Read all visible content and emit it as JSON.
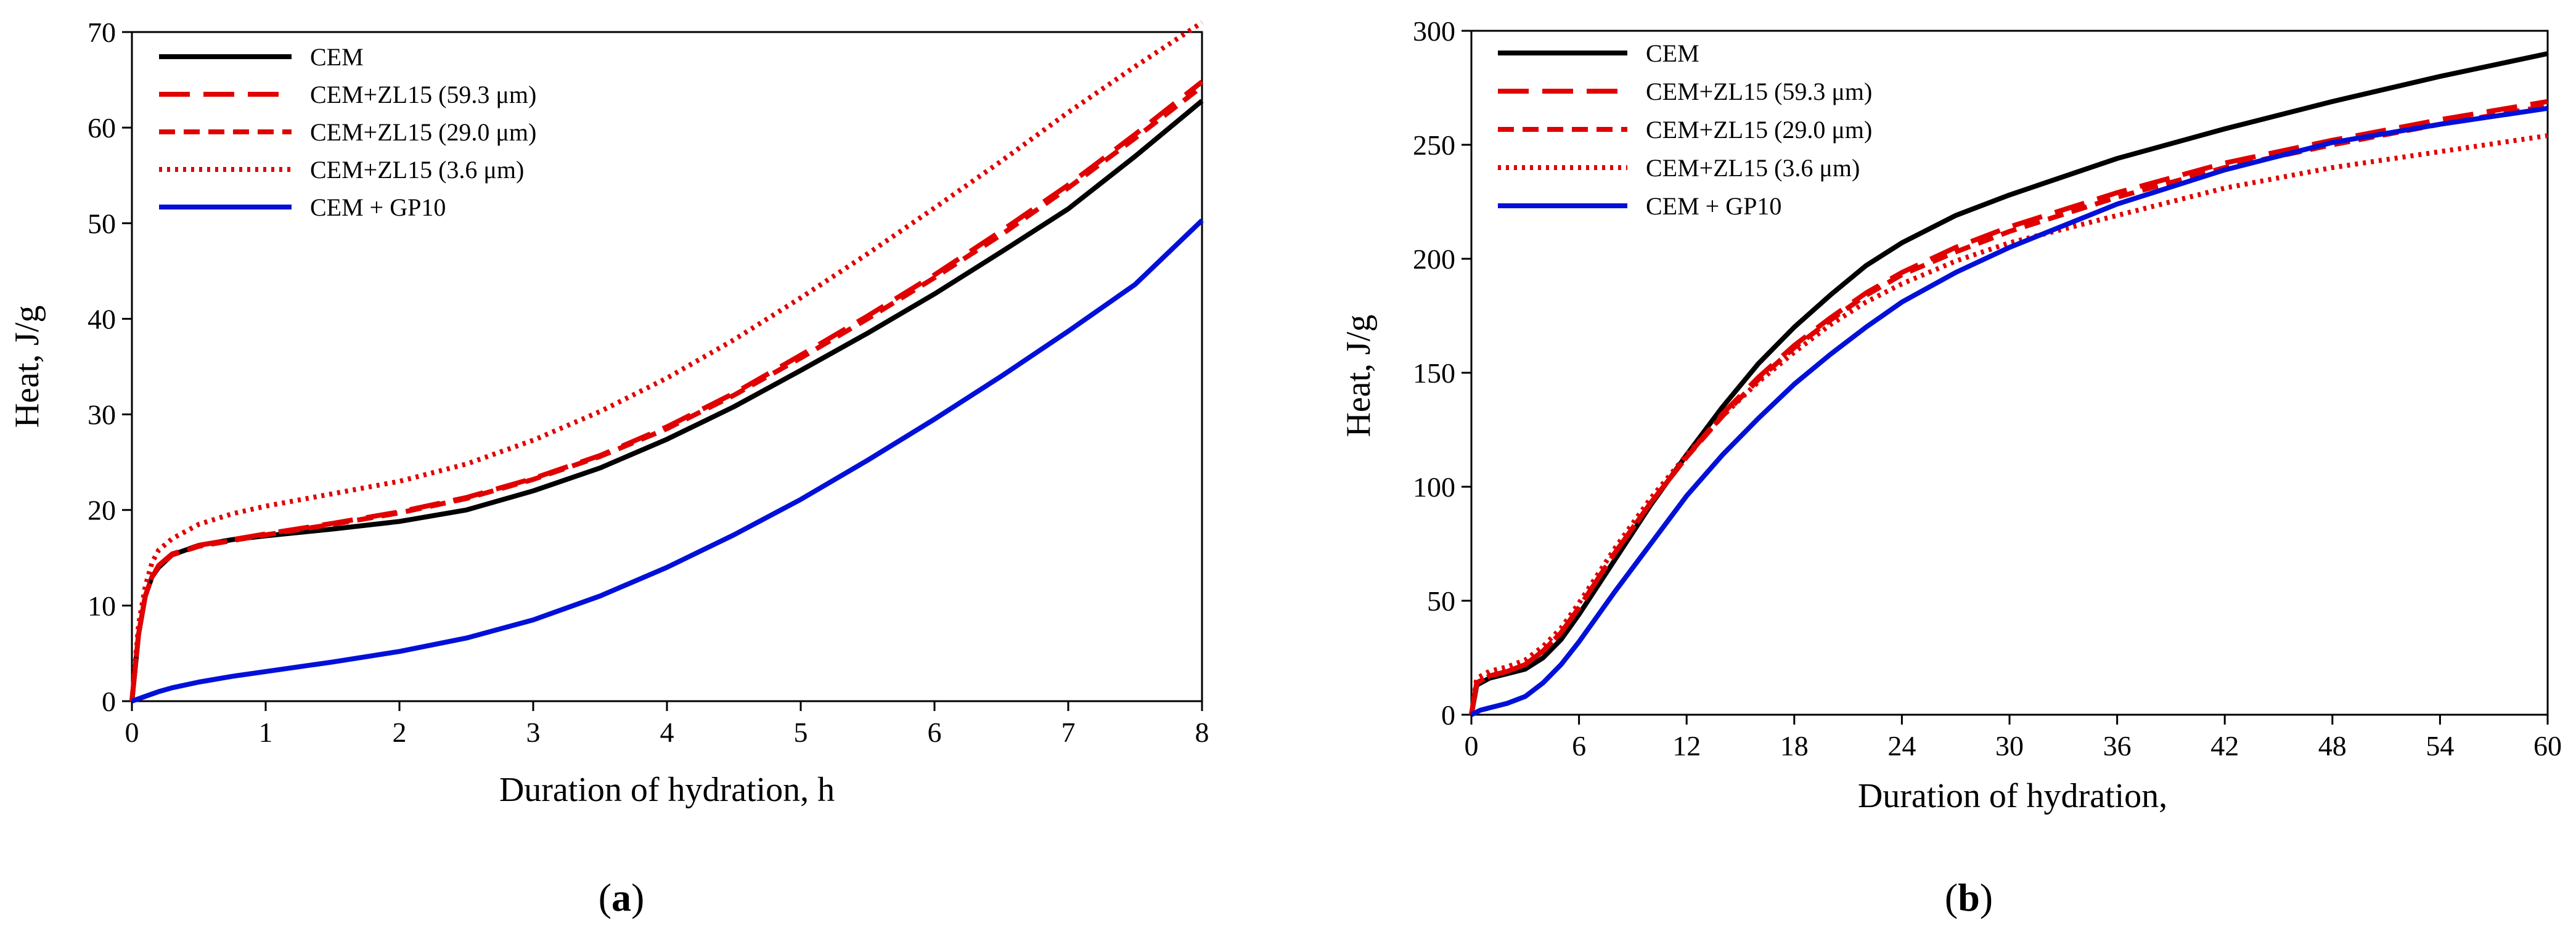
{
  "chart_data": [
    {
      "type": "line",
      "panel_label": "a",
      "xlabel": "Duration of hydration, h",
      "ylabel": "Heat, J/g",
      "xlim": [
        0,
        8
      ],
      "ylim": [
        0,
        70
      ],
      "xticks": [
        0,
        1,
        2,
        3,
        4,
        5,
        6,
        7,
        8
      ],
      "yticks": [
        0,
        10,
        20,
        30,
        40,
        50,
        60,
        70
      ],
      "legend_position": "top-left",
      "series": [
        {
          "name": "CEM",
          "color": "#000000",
          "style": "solid",
          "x": [
            0,
            0.05,
            0.1,
            0.15,
            0.2,
            0.3,
            0.5,
            0.75,
            1,
            1.5,
            2,
            2.5,
            3,
            3.5,
            4,
            4.5,
            5,
            5.5,
            6,
            6.5,
            7,
            7.5,
            8
          ],
          "y": [
            0,
            7,
            11,
            13,
            14,
            15.3,
            16.3,
            16.9,
            17.3,
            18,
            18.8,
            20,
            22,
            24.4,
            27.4,
            30.8,
            34.6,
            38.5,
            42.6,
            47,
            51.5,
            57,
            62.8
          ]
        },
        {
          "name": "CEM+ZL15 (59.3 μm)",
          "color": "#e00000",
          "style": "long-dash",
          "x": [
            0,
            0.05,
            0.1,
            0.15,
            0.2,
            0.3,
            0.5,
            0.75,
            1,
            1.5,
            2,
            2.5,
            3,
            3.5,
            4,
            4.5,
            5,
            5.5,
            6,
            6.5,
            7,
            7.5,
            8
          ],
          "y": [
            0,
            7,
            11,
            13,
            14.2,
            15.4,
            16.3,
            16.9,
            17.5,
            18.6,
            19.8,
            21.3,
            23.3,
            25.7,
            28.7,
            32.2,
            36.2,
            40.3,
            44.6,
            49.2,
            54,
            59.3,
            64.8
          ]
        },
        {
          "name": "CEM+ZL15 (29.0 μm)",
          "color": "#e00000",
          "style": "short-dash",
          "x": [
            0,
            0.05,
            0.1,
            0.15,
            0.2,
            0.3,
            0.5,
            0.75,
            1,
            1.5,
            2,
            2.5,
            3,
            3.5,
            4,
            4.5,
            5,
            5.5,
            6,
            6.5,
            7,
            7.5,
            8
          ],
          "y": [
            0,
            7,
            11,
            13,
            14.1,
            15.3,
            16.2,
            16.8,
            17.4,
            18.5,
            19.7,
            21.2,
            23.2,
            25.6,
            28.5,
            32,
            35.9,
            40,
            44.3,
            48.8,
            53.7,
            58.9,
            64.3
          ]
        },
        {
          "name": "CEM+ZL15 (3.6 μm)",
          "color": "#e00000",
          "style": "dotted",
          "x": [
            0,
            0.05,
            0.1,
            0.15,
            0.2,
            0.3,
            0.5,
            0.75,
            1,
            1.5,
            2,
            2.5,
            3,
            3.5,
            4,
            4.5,
            5,
            5.5,
            6,
            6.5,
            7,
            7.5,
            8
          ],
          "y": [
            0,
            8,
            12,
            14.5,
            15.8,
            17,
            18.5,
            19.6,
            20.4,
            21.7,
            23,
            24.8,
            27.3,
            30.3,
            33.8,
            37.8,
            42.2,
            46.8,
            51.6,
            56.5,
            61.6,
            66.4,
            71
          ]
        },
        {
          "name": "CEM + GP10",
          "color": "#0010d8",
          "style": "solid",
          "x": [
            0,
            0.1,
            0.2,
            0.3,
            0.5,
            0.75,
            1,
            1.5,
            2,
            2.5,
            3,
            3.5,
            4,
            4.5,
            5,
            5.5,
            6,
            6.5,
            7,
            7.5,
            8
          ],
          "y": [
            0,
            0.5,
            1,
            1.4,
            2,
            2.6,
            3.1,
            4.1,
            5.2,
            6.6,
            8.5,
            11,
            14,
            17.4,
            21.1,
            25.2,
            29.5,
            34,
            38.7,
            43.6,
            50.3
          ]
        }
      ]
    },
    {
      "type": "line",
      "panel_label": "b",
      "xlabel": "Duration of hydration,",
      "ylabel": "Heat, J/g",
      "xlim": [
        0,
        60
      ],
      "ylim": [
        0,
        300
      ],
      "xticks": [
        0,
        6,
        12,
        18,
        24,
        30,
        36,
        42,
        48,
        54,
        60
      ],
      "yticks": [
        0,
        50,
        100,
        150,
        200,
        250,
        300
      ],
      "legend_position": "top-left",
      "series": [
        {
          "name": "CEM",
          "color": "#000000",
          "style": "solid",
          "x": [
            0,
            0.3,
            1,
            2,
            3,
            4,
            5,
            6,
            8,
            10,
            12,
            14,
            16,
            18,
            20,
            22,
            24,
            27,
            30,
            36,
            42,
            48,
            54,
            60
          ],
          "y": [
            0,
            13,
            16,
            18,
            20,
            25,
            33,
            44,
            68,
            92,
            114,
            135,
            154,
            170,
            184,
            197,
            207,
            219,
            228,
            244,
            257,
            269,
            280,
            290
          ]
        },
        {
          "name": "CEM+ZL15 (59.3 μm)",
          "color": "#e00000",
          "style": "long-dash",
          "x": [
            0,
            0.3,
            1,
            2,
            3,
            4,
            5,
            6,
            8,
            10,
            12,
            14,
            16,
            18,
            20,
            22,
            24,
            27,
            30,
            36,
            42,
            48,
            54,
            60
          ],
          "y": [
            0,
            14,
            17,
            19,
            22,
            28,
            36,
            47,
            71,
            93,
            113,
            132,
            148,
            162,
            174,
            185,
            194,
            205,
            214,
            229,
            242,
            252,
            261,
            269
          ]
        },
        {
          "name": "CEM+ZL15 (29.0 μm)",
          "color": "#e00000",
          "style": "short-dash",
          "x": [
            0,
            0.3,
            1,
            2,
            3,
            4,
            5,
            6,
            8,
            10,
            12,
            14,
            16,
            18,
            20,
            22,
            24,
            27,
            30,
            36,
            42,
            48,
            54,
            60
          ],
          "y": [
            0,
            14,
            17,
            19,
            22,
            28,
            36,
            47,
            71,
            93,
            113,
            131,
            147,
            161,
            173,
            184,
            193,
            203,
            212,
            227,
            240,
            250,
            259,
            267
          ]
        },
        {
          "name": "CEM+ZL15 (3.6 μm)",
          "color": "#e00000",
          "style": "dotted",
          "x": [
            0,
            0.3,
            1,
            2,
            3,
            4,
            5,
            6,
            8,
            10,
            12,
            14,
            16,
            18,
            20,
            22,
            24,
            27,
            30,
            36,
            42,
            48,
            54,
            60
          ],
          "y": [
            0,
            16,
            19,
            21,
            24,
            30,
            38,
            49,
            73,
            95,
            114,
            131,
            146,
            159,
            171,
            181,
            189,
            199,
            207,
            219,
            231,
            240,
            247,
            254
          ]
        },
        {
          "name": "CEM + GP10",
          "color": "#0010d8",
          "style": "solid",
          "x": [
            0,
            0.5,
            1,
            2,
            3,
            4,
            5,
            6,
            7,
            8,
            10,
            12,
            14,
            16,
            18,
            20,
            22,
            24,
            27,
            30,
            36,
            42,
            48,
            54,
            60
          ],
          "y": [
            0,
            2,
            3,
            5,
            8,
            14,
            22,
            32,
            43,
            54,
            75,
            96,
            114,
            130,
            145,
            158,
            170,
            181,
            194,
            205,
            224,
            239,
            251,
            259,
            266
          ]
        }
      ]
    }
  ]
}
